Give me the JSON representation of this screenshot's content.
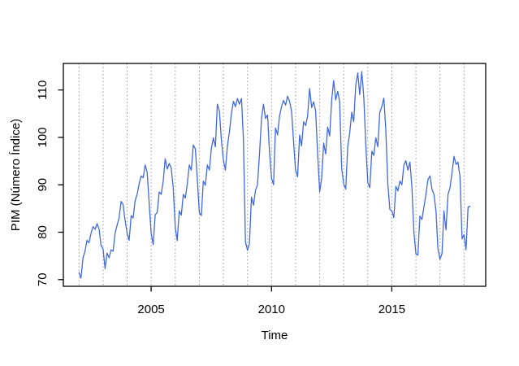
{
  "figure": {
    "background_color": "#ffffff",
    "frame_color": "#000000",
    "grid_color": "#969696",
    "grid_style": "dotted-vertical-yearly"
  },
  "chart_data": {
    "type": "line",
    "title": "",
    "xlabel": "Time",
    "ylabel": "PIM (Número Índice)",
    "x_start_year": 2002,
    "x_frequency": "monthly",
    "x_end": "2018-04",
    "xlim": [
      2001.35,
      2018.9
    ],
    "ylim": [
      68.6,
      115.6
    ],
    "x_ticks": [
      2005,
      2010,
      2015
    ],
    "x_tick_labels": [
      "2005",
      "2010",
      "2015"
    ],
    "y_ticks": [
      70,
      80,
      90,
      100,
      110
    ],
    "y_tick_labels": [
      "70",
      "80",
      "90",
      "100",
      "110"
    ],
    "gridline_years": [
      2002,
      2003,
      2004,
      2005,
      2006,
      2007,
      2008,
      2009,
      2010,
      2011,
      2012,
      2013,
      2014,
      2015,
      2016,
      2017,
      2018
    ],
    "legend": "none",
    "series": [
      {
        "name": "PIM (Número Índice)",
        "color": "#4169E1",
        "values": [
          71.5,
          70.3,
          74.6,
          76.0,
          78.3,
          77.8,
          79.8,
          81.2,
          80.6,
          81.8,
          80.7,
          77.2,
          76.5,
          72.3,
          75.6,
          74.6,
          76.3,
          76.0,
          79.8,
          81.5,
          83.0,
          86.5,
          85.8,
          82.5,
          79.8,
          78.3,
          83.5,
          83.0,
          86.7,
          88.0,
          90.2,
          91.9,
          91.5,
          94.2,
          92.6,
          86.0,
          79.8,
          77.4,
          83.7,
          84.2,
          88.5,
          88.0,
          90.8,
          95.5,
          93.3,
          94.5,
          93.6,
          89.3,
          81.0,
          78.2,
          84.5,
          83.6,
          88.0,
          87.2,
          90.2,
          94.2,
          93.1,
          98.4,
          97.6,
          91.4,
          84.2,
          83.5,
          90.8,
          89.9,
          94.2,
          93.1,
          97.6,
          99.9,
          98.0,
          107.0,
          105.6,
          99.4,
          95.3,
          93.1,
          98.2,
          101.1,
          105.0,
          107.6,
          106.5,
          108.2,
          107.0,
          108.2,
          99.7,
          78.0,
          76.2,
          77.6,
          87.4,
          85.7,
          88.8,
          90.0,
          96.5,
          104.0,
          107.0,
          104.0,
          104.7,
          97.0,
          91.4,
          90.0,
          102.0,
          100.5,
          104.5,
          106.5,
          107.8,
          106.8,
          108.7,
          107.6,
          105.5,
          99.0,
          93.1,
          91.7,
          100.5,
          98.2,
          103.3,
          102.5,
          104.5,
          110.3,
          106.3,
          107.5,
          105.6,
          96.5,
          88.5,
          91.4,
          98.8,
          96.5,
          102.2,
          100.3,
          107.9,
          112.0,
          107.9,
          109.7,
          107.5,
          93.4,
          90.2,
          89.1,
          98.0,
          101.0,
          105.3,
          103.3,
          111.0,
          113.6,
          109.0,
          113.9,
          108.5,
          98.8,
          90.5,
          89.4,
          97.1,
          96.2,
          99.9,
          98.0,
          105.3,
          106.5,
          108.3,
          101.6,
          90.2,
          84.8,
          84.5,
          83.1,
          89.7,
          88.7,
          90.8,
          90.0,
          94.2,
          95.1,
          93.1,
          94.8,
          89.7,
          80.0,
          75.4,
          75.2,
          83.4,
          82.7,
          85.4,
          88.0,
          91.1,
          91.9,
          89.1,
          88.0,
          84.5,
          76.5,
          74.3,
          75.5,
          84.5,
          80.5,
          88.0,
          89.3,
          92.5,
          96.0,
          94.3,
          94.8,
          91.6,
          78.6,
          79.5,
          76.3,
          85.3,
          85.5
        ]
      }
    ]
  }
}
